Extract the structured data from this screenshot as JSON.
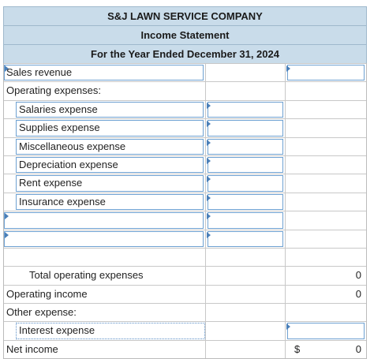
{
  "header": {
    "company": "S&J LAWN SERVICE COMPANY",
    "statement": "Income Statement",
    "period": "For the Year Ended December 31, 2024"
  },
  "rows": {
    "sales_revenue": "Sales revenue",
    "operating_expenses": "Operating expenses:",
    "salaries": "Salaries expense",
    "supplies": "Supplies expense",
    "misc": "Miscellaneous expense",
    "depreciation": "Depreciation expense",
    "rent": "Rent expense",
    "insurance": "Insurance expense",
    "total_operating": "Total operating expenses",
    "total_operating_value": "0",
    "operating_income": "Operating income",
    "operating_income_value": "0",
    "other_expense": "Other expense:",
    "interest": "Interest expense",
    "net_income": "Net income",
    "net_income_currency": "$",
    "net_income_value": "0"
  }
}
